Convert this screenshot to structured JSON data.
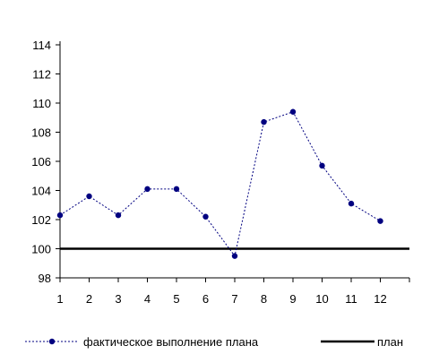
{
  "chart_data": {
    "type": "line",
    "x": [
      1,
      2,
      3,
      4,
      5,
      6,
      7,
      8,
      9,
      10,
      11,
      12
    ],
    "xticks": [
      "1",
      "2",
      "3",
      "4",
      "5",
      "6",
      "7",
      "8",
      "9",
      "10",
      "11",
      "12"
    ],
    "yticks": [
      "98",
      "100",
      "102",
      "104",
      "106",
      "108",
      "110",
      "112",
      "114"
    ],
    "ylim": [
      98,
      114
    ],
    "grid": false,
    "legend_position": "bottom",
    "series": [
      {
        "name": "фактическое выполнение плана",
        "values": [
          102.3,
          103.6,
          102.3,
          104.1,
          104.1,
          102.2,
          99.5,
          108.7,
          109.4,
          105.7,
          103.1,
          101.9
        ],
        "color": "#000080",
        "style": "dotted-with-markers"
      },
      {
        "name": "план",
        "values": [
          100,
          100,
          100,
          100,
          100,
          100,
          100,
          100,
          100,
          100,
          100,
          100
        ],
        "color": "#000000",
        "style": "solid"
      }
    ]
  }
}
